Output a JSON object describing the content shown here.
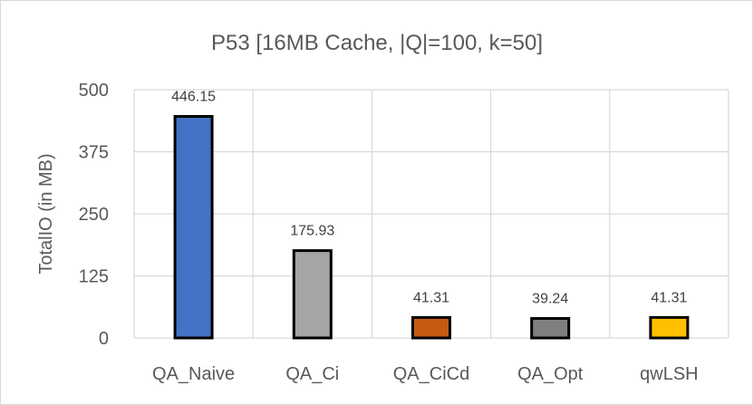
{
  "chart_data": {
    "type": "bar",
    "title": "P53 [16MB Cache, |Q|=100, k=50]",
    "xlabel": "",
    "ylabel": "TotalIO (in MB)",
    "ylim": [
      0,
      500
    ],
    "yticks": [
      0,
      125,
      250,
      375,
      500
    ],
    "grid": true,
    "categories": [
      "QA_Naive",
      "QA_Ci",
      "QA_CiCd",
      "QA_Opt",
      "qwLSH"
    ],
    "values": [
      446.15,
      175.93,
      41.31,
      39.24,
      41.31
    ],
    "data_labels": [
      "446.15",
      "175.93",
      "41.31",
      "39.24",
      "41.31"
    ],
    "bar_colors": [
      "#4472C4",
      "#A5A5A5",
      "#C55A11",
      "#7F7F7F",
      "#FFC000"
    ],
    "bar_edge_color": "#000000",
    "gridline_color": "#d9d9d9"
  }
}
